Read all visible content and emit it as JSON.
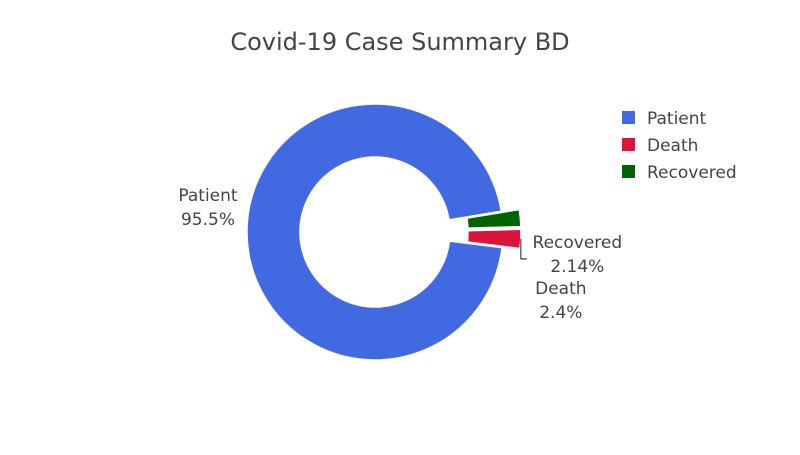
{
  "chart_data": {
    "type": "pie",
    "title": "Covid-19 Case Summary BD",
    "hole": true,
    "legend_position": "top-right",
    "slices": [
      {
        "label": "Patient",
        "percent": 95.5,
        "percent_text": "95.5%",
        "color": "#4169E1",
        "pulled": false
      },
      {
        "label": "Death",
        "percent": 2.4,
        "percent_text": "2.4%",
        "color": "#DC143C",
        "pulled": true
      },
      {
        "label": "Recovered",
        "percent": 2.14,
        "percent_text": "2.14%",
        "color": "#006400",
        "pulled": true
      }
    ]
  }
}
